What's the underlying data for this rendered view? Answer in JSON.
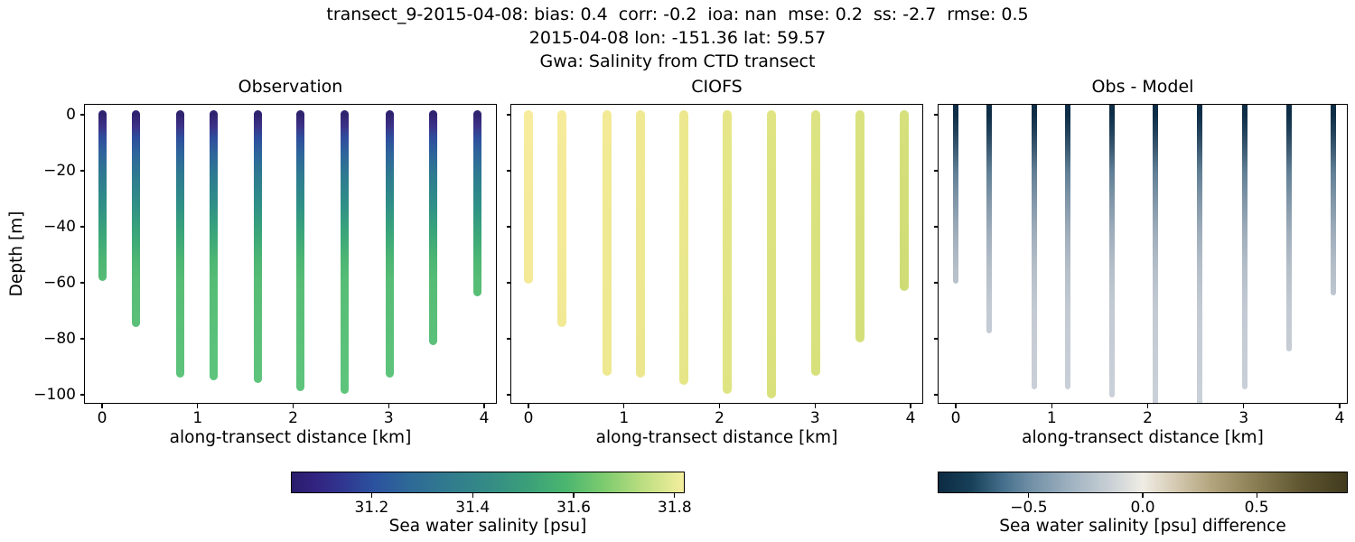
{
  "suptitle": {
    "line1": "transect_9-2015-04-08: bias: 0.4  corr: -0.2  ioa: nan  mse: 0.2  ss: -2.7  rmse: 0.5",
    "line2": "2015-04-08 lon: -151.36 lat: 59.57",
    "line3": "Gwa: Salinity from CTD transect"
  },
  "chart_data": {
    "type": "scatter",
    "xlabel": "along-transect distance [km]",
    "ylabel": "Depth [m]",
    "xlim": [
      -0.19,
      4.13
    ],
    "ylim": [
      -103.2,
      3.9
    ],
    "xticks": [
      0,
      1,
      2,
      3,
      4
    ],
    "xtick_labels": [
      "0",
      "1",
      "2",
      "3",
      "4"
    ],
    "yticks": [
      0,
      -20,
      -40,
      -60,
      -80,
      -100
    ],
    "ytick_labels": [
      "0",
      "−20",
      "−40",
      "−60",
      "−80",
      "−100"
    ],
    "station_x_km": [
      0.0,
      0.35,
      0.82,
      1.17,
      1.63,
      2.08,
      2.54,
      3.01,
      3.47,
      3.93
    ],
    "panels": [
      {
        "title": "Observation",
        "column_bottom_depth_m": [
          -58,
          -74.5,
          -92.5,
          -93.5,
          -94.5,
          -97.5,
          -98.5,
          -92.5,
          -81,
          -63.5
        ],
        "salinity_top_to_bottom_psu": [
          31.06,
          31.65
        ],
        "depth_color_stops": [
          {
            "depth_m": 0,
            "color": "#2f2370"
          },
          {
            "depth_m": 4,
            "color": "#3c3287"
          },
          {
            "depth_m": 8,
            "color": "#2f4c9c"
          },
          {
            "depth_m": 14,
            "color": "#2e659b"
          },
          {
            "depth_m": 22,
            "color": "#2e7b90"
          },
          {
            "depth_m": 32,
            "color": "#2f8f87"
          },
          {
            "depth_m": 42,
            "color": "#3aa57a"
          },
          {
            "depth_m": 52,
            "color": "#4db673"
          },
          {
            "depth_m": 60,
            "color": "#57bd76"
          },
          {
            "depth_m": 105,
            "color": "#60c67e"
          }
        ]
      },
      {
        "title": "CIOFS",
        "column_bottom_depth_m": [
          -59,
          -74.5,
          -92,
          -92.5,
          -95,
          -98.5,
          -100,
          -92,
          -80,
          -61.5
        ],
        "salinity_left_to_right_psu": [
          31.8,
          31.72
        ],
        "column_colors": [
          {
            "top": "#f7ec9d",
            "bottom": "#f3e997"
          },
          {
            "top": "#f6eb9b",
            "bottom": "#f2e995"
          },
          {
            "top": "#f2ea96",
            "bottom": "#eee891"
          },
          {
            "top": "#f0e993",
            "bottom": "#ece78e"
          },
          {
            "top": "#ede88f",
            "bottom": "#e6e689"
          },
          {
            "top": "#e6e688",
            "bottom": "#dfe483"
          },
          {
            "top": "#e0e483",
            "bottom": "#d9e17d"
          },
          {
            "top": "#dde382",
            "bottom": "#d7e17c"
          },
          {
            "top": "#dae280",
            "bottom": "#d4df7a"
          },
          {
            "top": "#d6e07c",
            "bottom": "#cfdc75"
          }
        ]
      },
      {
        "title": "Obs - Model",
        "column_bottom_depth_m": [
          -59.5,
          -77,
          -97,
          -97,
          -100,
          -103,
          -103,
          -97,
          -83.5,
          -63.5
        ],
        "difference_top_to_bottom_psu": [
          -0.8,
          -0.05
        ],
        "depth_color_stops": [
          {
            "depth_m": 0,
            "color": "#0e2d46"
          },
          {
            "depth_m": 6,
            "color": "#21415a"
          },
          {
            "depth_m": 12,
            "color": "#3b5971"
          },
          {
            "depth_m": 20,
            "color": "#5f7e94"
          },
          {
            "depth_m": 30,
            "color": "#7f95a7"
          },
          {
            "depth_m": 42,
            "color": "#9fadbb"
          },
          {
            "depth_m": 55,
            "color": "#b5bfc9"
          },
          {
            "depth_m": 70,
            "color": "#c3cad3"
          },
          {
            "depth_m": 105,
            "color": "#cbd1d8"
          }
        ]
      }
    ],
    "colorbars": [
      {
        "label": "Sea water salinity [psu]",
        "ticks": [
          31.2,
          31.4,
          31.6,
          31.8
        ],
        "tick_labels": [
          "31.2",
          "31.4",
          "31.6",
          "31.8"
        ],
        "vmin": 31.04,
        "vmax": 31.82,
        "stops": [
          {
            "pos": 0.0,
            "color": "#2a1c6c"
          },
          {
            "pos": 0.06,
            "color": "#322380"
          },
          {
            "pos": 0.13,
            "color": "#30368f"
          },
          {
            "pos": 0.21,
            "color": "#2b529f"
          },
          {
            "pos": 0.3,
            "color": "#2e6997"
          },
          {
            "pos": 0.4,
            "color": "#317b8e"
          },
          {
            "pos": 0.5,
            "color": "#348b86"
          },
          {
            "pos": 0.6,
            "color": "#3a9f79"
          },
          {
            "pos": 0.7,
            "color": "#4bb66f"
          },
          {
            "pos": 0.8,
            "color": "#7fcc6f"
          },
          {
            "pos": 0.9,
            "color": "#bfdf82"
          },
          {
            "pos": 1.0,
            "color": "#f4ee9e"
          }
        ]
      },
      {
        "label": "Sea water salinity [psu] difference",
        "ticks": [
          -0.5,
          0.0,
          0.5
        ],
        "tick_labels": [
          "−0.5",
          "0.0",
          "0.5"
        ],
        "vmin": -0.9,
        "vmax": 0.9,
        "stops": [
          {
            "pos": 0.0,
            "color": "#0c2b43"
          },
          {
            "pos": 0.08,
            "color": "#174058"
          },
          {
            "pos": 0.16,
            "color": "#46708d"
          },
          {
            "pos": 0.23,
            "color": "#7391a7"
          },
          {
            "pos": 0.33,
            "color": "#a2b4c2"
          },
          {
            "pos": 0.42,
            "color": "#c9d0d5"
          },
          {
            "pos": 0.5,
            "color": "#efece4"
          },
          {
            "pos": 0.58,
            "color": "#d5cab2"
          },
          {
            "pos": 0.67,
            "color": "#b2a47c"
          },
          {
            "pos": 0.78,
            "color": "#887c52"
          },
          {
            "pos": 0.89,
            "color": "#5e5530"
          },
          {
            "pos": 1.0,
            "color": "#413b1d"
          }
        ]
      }
    ]
  }
}
